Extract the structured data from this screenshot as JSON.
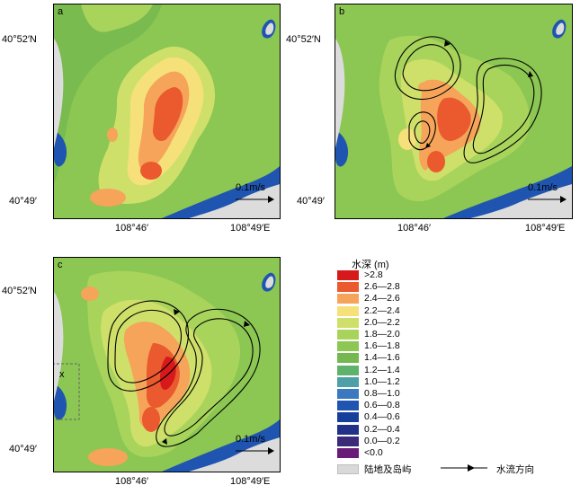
{
  "panels": [
    {
      "label": "a"
    },
    {
      "label": "b"
    },
    {
      "label": "c"
    }
  ],
  "axes": {
    "lat_top": "40°52′N",
    "lat_bottom": "40°49′",
    "lon_left": "108°46′",
    "lon_right": "108°49′E"
  },
  "scale_label": "0.1m/s",
  "legend": {
    "title": "水深 (m)",
    "items": [
      {
        "label": ">2.8",
        "color": "#d7191c"
      },
      {
        "label": "2.6—2.8",
        "color": "#ea5a2e"
      },
      {
        "label": "2.4—2.6",
        "color": "#f5a45a"
      },
      {
        "label": "2.2—2.4",
        "color": "#f6e07a"
      },
      {
        "label": "2.0—2.2",
        "color": "#cfe06a"
      },
      {
        "label": "1.8—2.0",
        "color": "#a8d45c"
      },
      {
        "label": "1.6—1.8",
        "color": "#8cc653"
      },
      {
        "label": "1.4—1.6",
        "color": "#74b84f"
      },
      {
        "label": "1.2—1.4",
        "color": "#5fb26b"
      },
      {
        "label": "1.0—1.2",
        "color": "#4e9fa6"
      },
      {
        "label": "0.8—1.0",
        "color": "#3a79c0"
      },
      {
        "label": "0.6—0.8",
        "color": "#1f55b0"
      },
      {
        "label": "0.4—0.6",
        "color": "#163f9b"
      },
      {
        "label": "0.2—0.4",
        "color": "#21318a"
      },
      {
        "label": "0.0—0.2",
        "color": "#3b2a7a"
      },
      {
        "label": "<0.0",
        "color": "#6a1b78"
      }
    ],
    "land_label": "陆地及岛屿",
    "flow_label": "水流方向"
  },
  "annotation_x": "x"
}
